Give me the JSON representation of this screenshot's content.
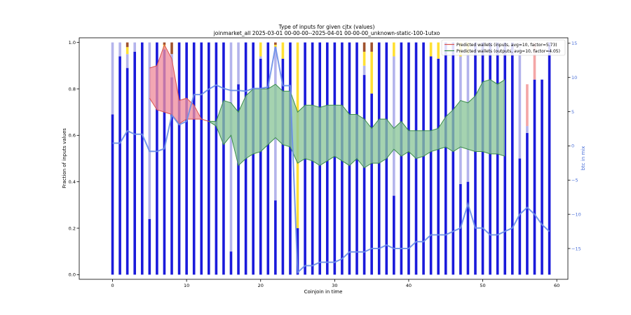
{
  "chart_data": {
    "type": "bar",
    "title": "Type of inputs for given cjtx (values)",
    "subtitle": "joinmarket_all 2025-03-01 00-00-00--2025-04-01 00-00-00_unknown-static-100-1utxo",
    "xlabel": "Coinjoin in time",
    "ylabel": "Fraction of inputs values",
    "y2label": "btc in mix",
    "xlim": [
      -4.5,
      61.5
    ],
    "ylim": [
      -0.02,
      1.02
    ],
    "y2lim": [
      -19.5,
      15.8
    ],
    "xticks": [
      0,
      10,
      20,
      30,
      40,
      50,
      60
    ],
    "yticks": [
      0.0,
      0.2,
      0.4,
      0.6,
      0.8,
      1.0
    ],
    "y2ticks": [
      -15,
      -10,
      -5,
      0,
      5,
      10,
      15
    ],
    "legend_position": "top-right",
    "colors": {
      "dark_blue": "#1a1adb",
      "light_blue": "#b4b4ec",
      "yellow": "#ffe033",
      "brown": "#a0522d",
      "salmon": "#f4a6a6",
      "green_fill": "#8cc79a",
      "green_line": "#3a8c4a",
      "red_fill": "#f08e9e",
      "red_line": "#d9534f",
      "btc_line": "#6b8fe8"
    },
    "legend": [
      {
        "label": "Predicted wallets (inputs, avg=10, factor=5.73)",
        "color": "#d9534f"
      },
      {
        "label": "Predicted wallets (outputs, avg=10, factor=4.05)",
        "color": "#3a8c4a"
      }
    ],
    "bars": {
      "x": [
        0,
        1,
        2,
        3,
        4,
        5,
        6,
        7,
        8,
        9,
        10,
        11,
        12,
        13,
        14,
        15,
        16,
        17,
        18,
        19,
        20,
        21,
        22,
        23,
        24,
        25,
        26,
        27,
        28,
        29,
        30,
        31,
        32,
        33,
        34,
        35,
        36,
        37,
        38,
        39,
        40,
        41,
        42,
        43,
        44,
        45,
        46,
        47,
        48,
        49,
        50,
        51,
        52,
        53,
        54,
        55,
        56,
        57,
        58,
        59
      ],
      "dark_blue": [
        0.69,
        0.94,
        0.89,
        0.96,
        1.0,
        0.24,
        1.0,
        0.97,
        0.85,
        1.0,
        1.0,
        1.0,
        1.0,
        1.0,
        1.0,
        1.0,
        0.1,
        0.82,
        1.0,
        1.0,
        0.93,
        1.0,
        0.32,
        0.93,
        1.0,
        0.2,
        1.0,
        1.0,
        1.0,
        1.0,
        1.0,
        1.0,
        1.0,
        1.0,
        0.86,
        0.78,
        1.0,
        1.0,
        0.34,
        1.0,
        1.0,
        1.0,
        1.0,
        0.94,
        0.93,
        1.0,
        1.0,
        0.39,
        0.4,
        1.0,
        1.0,
        1.0,
        1.0,
        1.0,
        1.0,
        0.5,
        0.61,
        0.84,
        0.84,
        1.0
      ],
      "light_blue": [
        0.31,
        0.06,
        0.06,
        0.04,
        0.0,
        0.76,
        0.0,
        0.0,
        0.1,
        0.0,
        0.0,
        0.0,
        0.0,
        0.0,
        0.0,
        0.0,
        0.9,
        0.18,
        0.0,
        0.0,
        0.01,
        0.0,
        0.66,
        0.0,
        0.0,
        0.0,
        0.0,
        0.0,
        0.0,
        0.0,
        0.0,
        0.0,
        0.0,
        0.0,
        0.04,
        0.0,
        0.0,
        0.0,
        0.6,
        0.0,
        0.0,
        0.0,
        0.0,
        0.0,
        0.0,
        0.0,
        0.0,
        0.55,
        0.55,
        0.0,
        0.0,
        0.0,
        0.0,
        0.0,
        0.0,
        0.5,
        0.03,
        0.0,
        0.0,
        0.0
      ],
      "yellow": [
        0.0,
        0.0,
        0.03,
        0.0,
        0.0,
        0.0,
        0.0,
        0.02,
        0.0,
        0.0,
        0.0,
        0.0,
        0.0,
        0.0,
        0.0,
        0.0,
        0.0,
        0.0,
        0.0,
        0.0,
        0.06,
        0.0,
        0.01,
        0.07,
        0.0,
        0.8,
        0.0,
        0.0,
        0.0,
        0.0,
        0.0,
        0.0,
        0.0,
        0.0,
        0.06,
        0.18,
        0.0,
        0.0,
        0.06,
        0.0,
        0.0,
        0.0,
        0.0,
        0.06,
        0.07,
        0.0,
        0.0,
        0.06,
        0.05,
        0.0,
        0.0,
        0.0,
        0.0,
        0.0,
        0.0,
        0.0,
        0.0,
        0.0,
        0.0,
        0.0
      ],
      "brown": [
        0.0,
        0.0,
        0.02,
        0.0,
        0.0,
        0.0,
        0.0,
        0.01,
        0.05,
        0.0,
        0.0,
        0.0,
        0.0,
        0.0,
        0.0,
        0.0,
        0.0,
        0.0,
        0.0,
        0.0,
        0.0,
        0.0,
        0.01,
        0.0,
        0.0,
        0.0,
        0.0,
        0.0,
        0.0,
        0.0,
        0.0,
        0.0,
        0.0,
        0.0,
        0.04,
        0.04,
        0.0,
        0.0,
        0.0,
        0.0,
        0.0,
        0.0,
        0.0,
        0.0,
        0.0,
        0.0,
        0.0,
        0.0,
        0.0,
        0.0,
        0.0,
        0.0,
        0.0,
        0.0,
        0.0,
        0.0,
        0.0,
        0.0,
        0.0,
        0.0
      ],
      "salmon": [
        0.0,
        0.0,
        0.0,
        0.0,
        0.0,
        0.0,
        0.0,
        0.0,
        0.0,
        0.0,
        0.0,
        0.0,
        0.0,
        0.0,
        0.0,
        0.0,
        0.0,
        0.0,
        0.0,
        0.0,
        0.0,
        0.0,
        0.0,
        0.0,
        0.0,
        0.0,
        0.0,
        0.0,
        0.0,
        0.0,
        0.0,
        0.0,
        0.0,
        0.0,
        0.0,
        0.0,
        0.0,
        0.0,
        0.0,
        0.0,
        0.0,
        0.0,
        0.0,
        0.0,
        0.0,
        0.0,
        0.0,
        0.0,
        0.0,
        0.0,
        0.0,
        0.0,
        0.0,
        0.0,
        0.0,
        0.0,
        0.18,
        0.16,
        0.0,
        0.0
      ]
    },
    "btc_in_mix": {
      "x": [
        0,
        1,
        2,
        3,
        4,
        5,
        6,
        7,
        8,
        9,
        10,
        11,
        12,
        13,
        14,
        15,
        16,
        17,
        18,
        19,
        20,
        21,
        22,
        23,
        24,
        25,
        26,
        27,
        28,
        29,
        30,
        31,
        32,
        33,
        34,
        35,
        36,
        37,
        38,
        39,
        40,
        41,
        42,
        43,
        44,
        45,
        46,
        47,
        48,
        49,
        50,
        51,
        52,
        53,
        54,
        55,
        56,
        57,
        58,
        59
      ],
      "values": [
        0.4,
        0.4,
        2.2,
        1.7,
        1.7,
        -0.8,
        -0.8,
        -0.4,
        4.5,
        3.1,
        3.6,
        7.5,
        7.5,
        8.3,
        8.9,
        8.4,
        8.1,
        8.1,
        8.0,
        8.4,
        8.4,
        8.6,
        14.5,
        8.8,
        8.8,
        -18.5,
        -17.5,
        -17.5,
        -17.0,
        -17.0,
        -17.0,
        -16.5,
        -15.5,
        -15.5,
        -15.5,
        -15.0,
        -15.0,
        -14.5,
        -15.0,
        -15.0,
        -15.0,
        -14.0,
        -14.0,
        -13.0,
        -13.0,
        -13.0,
        -12.5,
        -12.0,
        -8.5,
        -12.0,
        -12.0,
        -13.0,
        -13.0,
        -12.5,
        -12.0,
        -10.0,
        -9.0,
        -10.0,
        -11.5,
        -12.5
      ]
    },
    "inputs_band": {
      "x": [
        5,
        6,
        7,
        8,
        9,
        10,
        11,
        12,
        13
      ],
      "upper": [
        0.89,
        0.9,
        0.99,
        0.93,
        0.75,
        0.76,
        0.73,
        0.67,
        0.66
      ],
      "lower": [
        0.76,
        0.71,
        0.7,
        0.69,
        0.65,
        0.67,
        0.67,
        0.67,
        0.66
      ]
    },
    "outputs_band": {
      "x": [
        13,
        14,
        15,
        16,
        17,
        18,
        19,
        20,
        21,
        22,
        23,
        24,
        25,
        26,
        27,
        28,
        29,
        30,
        31,
        32,
        33,
        34,
        35,
        36,
        37,
        38,
        39,
        40,
        41,
        42,
        43,
        44,
        45,
        46,
        47,
        48,
        49,
        50,
        51,
        52,
        53
      ],
      "upper": [
        0.66,
        0.66,
        0.75,
        0.74,
        0.7,
        0.77,
        0.8,
        0.8,
        0.8,
        0.82,
        0.79,
        0.79,
        0.7,
        0.73,
        0.73,
        0.72,
        0.73,
        0.73,
        0.73,
        0.69,
        0.69,
        0.67,
        0.63,
        0.67,
        0.67,
        0.63,
        0.66,
        0.62,
        0.62,
        0.62,
        0.62,
        0.63,
        0.68,
        0.71,
        0.75,
        0.74,
        0.77,
        0.83,
        0.84,
        0.82,
        0.84
      ],
      "lower": [
        0.66,
        0.64,
        0.56,
        0.6,
        0.47,
        0.5,
        0.52,
        0.53,
        0.56,
        0.59,
        0.56,
        0.55,
        0.48,
        0.5,
        0.49,
        0.47,
        0.49,
        0.51,
        0.49,
        0.47,
        0.5,
        0.46,
        0.48,
        0.48,
        0.5,
        0.54,
        0.51,
        0.53,
        0.5,
        0.51,
        0.53,
        0.54,
        0.55,
        0.53,
        0.55,
        0.54,
        0.53,
        0.53,
        0.52,
        0.52,
        0.51
      ]
    }
  }
}
